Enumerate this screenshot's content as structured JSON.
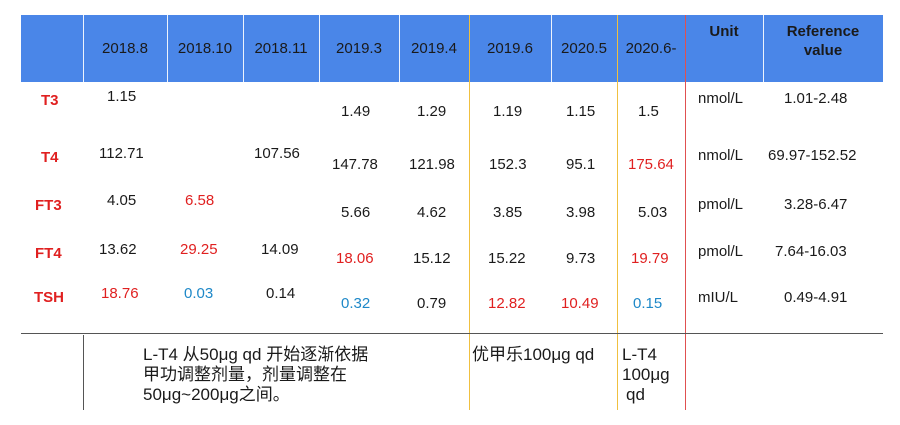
{
  "header": {
    "dates": [
      "2018.8",
      "2018.10",
      "2018.11",
      "2019.3",
      "2019.4",
      "2019.6",
      "2020.5",
      "2020.6-"
    ],
    "unit": "Unit",
    "reference": "Reference value"
  },
  "rows": [
    {
      "label": "T3",
      "values": [
        "1.15",
        "",
        "",
        "1.49",
        "1.29",
        "1.19",
        "1.15",
        "1.5"
      ],
      "colors": [
        "n",
        "n",
        "n",
        "n",
        "n",
        "n",
        "n",
        "n"
      ],
      "unit": "nmol/L",
      "ref": "1.01-2.48"
    },
    {
      "label": "T4",
      "values": [
        "112.71",
        "",
        "107.56",
        "147.78",
        "121.98",
        "152.3",
        "95.1",
        "175.64"
      ],
      "colors": [
        "n",
        "n",
        "n",
        "n",
        "n",
        "n",
        "n",
        "r"
      ],
      "unit": "nmol/L",
      "ref": "69.97-152.52"
    },
    {
      "label": "FT3",
      "values": [
        "4.05",
        "6.58",
        "",
        "5.66",
        "4.62",
        "3.85",
        "3.98",
        "5.03"
      ],
      "colors": [
        "n",
        "r",
        "n",
        "n",
        "n",
        "n",
        "n",
        "n"
      ],
      "unit": "pmol/L",
      "ref": "3.28-6.47"
    },
    {
      "label": "FT4",
      "values": [
        "13.62",
        "29.25",
        "14.09",
        "18.06",
        "15.12",
        "15.22",
        "9.73",
        "19.79"
      ],
      "colors": [
        "n",
        "r",
        "n",
        "r",
        "n",
        "n",
        "n",
        "r"
      ],
      "unit": "pmol/L",
      "ref": "7.64-16.03"
    },
    {
      "label": "TSH",
      "values": [
        "18.76",
        "0.03",
        "0.14",
        "0.32",
        "0.79",
        "12.82",
        "10.49",
        "0.15"
      ],
      "colors": [
        "r",
        "b",
        "n",
        "b",
        "n",
        "r",
        "r",
        "b"
      ],
      "unit": "mIU/L",
      "ref": "0.49-4.91"
    }
  ],
  "notes": {
    "first": [
      "L-T4 从50μg qd 开始逐渐依据",
      "甲功调整剂量，剂量调整在",
      "50μg~200μg之间。"
    ],
    "second": "优甲乐100μg qd",
    "third": [
      "L-T4",
      "100μg",
      "qd"
    ]
  },
  "colors": {
    "header_bg": "#4a86e8",
    "abnormal_high": "#e02020",
    "abnormal_low": "#1e88c8",
    "divider_yellow": "#f0c040",
    "divider_red": "#e05050"
  }
}
